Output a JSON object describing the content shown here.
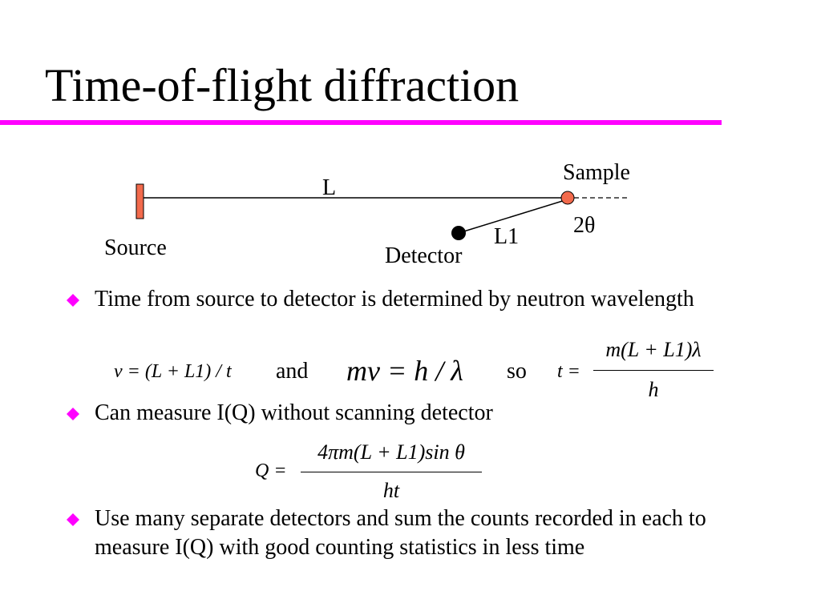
{
  "slide": {
    "title": "Time-of-flight diffraction",
    "accent_color": "#ff00ff",
    "bullet_color": "#ff00ff"
  },
  "diagram": {
    "source_label": "Source",
    "sample_label": "Sample",
    "detector_label": "Detector",
    "path_label": "L",
    "detector_path_label": "L1",
    "angle_label": "2θ",
    "source_color": "#f26a4c",
    "sample_color": "#f26a4c"
  },
  "bullets": [
    {
      "text": "Time from source to detector is determined by neutron wavelength"
    },
    {
      "text": "Can measure I(Q) without scanning detector"
    },
    {
      "text": "Use many separate detectors and sum the counts recorded in each to measure I(Q) with good counting statistics in less time"
    }
  ],
  "equations": {
    "velocity": "v = (L + L1) / t",
    "connector_and": "and",
    "de_broglie": "mv = h / λ",
    "connector_so": "so",
    "time_lhs": "t =",
    "time_numerator": "m(L + L1)λ",
    "time_denominator": "h",
    "q_lhs": "Q =",
    "q_numerator": "4πm(L + L1)sin θ",
    "q_denominator": "ht"
  }
}
